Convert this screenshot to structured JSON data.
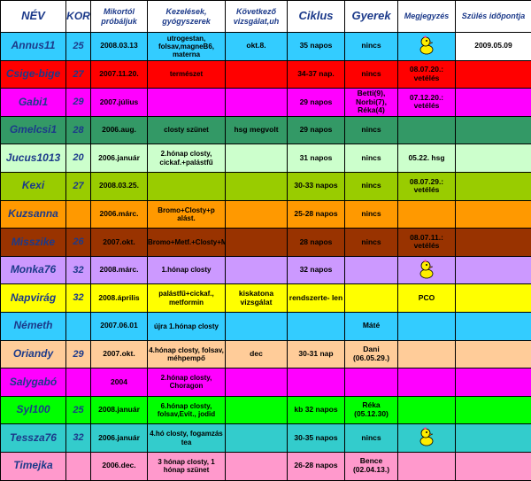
{
  "headers": [
    "NÉV",
    "KOR",
    "Mikortól próbáljuk",
    "Kezelések, gyógyszerek",
    "Következő vizsgálat,uh",
    "Ciklus",
    "Gyerek",
    "Megjegyzés",
    "Szülés időpontja"
  ],
  "rows": [
    {
      "bg": "#33ccff",
      "name": "Annus11",
      "kor": "25",
      "mikortol": "2008.03.13",
      "kezeles": "utrogestan, folsav,magneB6, materna",
      "kovetkezo": "okt.8.",
      "ciklus": "35 napos",
      "gyerek": "nincs",
      "megj": "",
      "duck": true,
      "szules": "2009.05.09",
      "szules_bg": "#ffffff"
    },
    {
      "bg": "#ff0000",
      "name": "Csige-bige",
      "kor": "27",
      "mikortol": "2007.11.20.",
      "kezeles": "természet",
      "kovetkezo": "",
      "ciklus": "34-37 nap.",
      "gyerek": "nincs",
      "megj": "08.07.20.: vetélés",
      "duck": false,
      "szules": "",
      "szules_bg": ""
    },
    {
      "bg": "#ff00ff",
      "name": "Gabi1",
      "kor": "29",
      "mikortol": "2007.július",
      "kezeles": "",
      "kovetkezo": "",
      "ciklus": "29 napos",
      "gyerek": "Betti(9), Norbi(7), Réka(4)",
      "megj": "07.12.20.: vetélés",
      "duck": false,
      "szules": "",
      "szules_bg": ""
    },
    {
      "bg": "#339966",
      "name": "Gmelcsi1",
      "kor": "28",
      "mikortol": "2006.aug.",
      "kezeles": "closty szünet",
      "kovetkezo": "hsg megvolt",
      "ciklus": "29 napos",
      "gyerek": "nincs",
      "megj": "",
      "duck": false,
      "szules": "",
      "szules_bg": ""
    },
    {
      "bg": "#ccffcc",
      "name": "Jucus1013",
      "kor": "20",
      "mikortol": "2006.január",
      "kezeles": "2.hónap closty, cickaf.+palástfű",
      "kovetkezo": "",
      "ciklus": "31 napos",
      "gyerek": "nincs",
      "megj": "05.22. hsg",
      "duck": false,
      "szules": "",
      "szules_bg": ""
    },
    {
      "bg": "#99cc00",
      "name": "Kexi",
      "kor": "27",
      "mikortol": "2008.03.25.",
      "kezeles": "",
      "kovetkezo": "",
      "ciklus": "30-33 napos",
      "gyerek": "nincs",
      "megj": "08.07.29.: vetélés",
      "duck": false,
      "szules": "",
      "szules_bg": ""
    },
    {
      "bg": "#ff9900",
      "name": "Kuzsanna",
      "kor": "",
      "mikortol": "2006.márc.",
      "kezeles": "Bromo+Closty+p alást.",
      "kovetkezo": "",
      "ciklus": "25-28 napos",
      "gyerek": "nincs",
      "megj": "",
      "duck": false,
      "szules": "",
      "szules_bg": ""
    },
    {
      "bg": "#993300",
      "name": "Misszike",
      "kor": "26",
      "mikortol": "2007.okt.",
      "kezeles": "Bromo+Metf.+Closty+Mio+Chorag.",
      "kovetkezo": "",
      "ciklus": "28 napos",
      "gyerek": "nincs",
      "megj": "08.07.11.: vetélés",
      "duck": false,
      "szules": "",
      "szules_bg": ""
    },
    {
      "bg": "#cc99ff",
      "name": "Monka76",
      "kor": "32",
      "mikortol": "2008.márc.",
      "kezeles": "1.hónap closty",
      "kovetkezo": "",
      "ciklus": "32 napos",
      "gyerek": "",
      "megj": "",
      "duck": true,
      "szules": "",
      "szules_bg": ""
    },
    {
      "bg": "#ffff00",
      "name": "Napvirág",
      "kor": "32",
      "mikortol": "2008.április",
      "kezeles": "palástfű+cickaf., metformin",
      "kovetkezo": "kiskatona vizsgálat",
      "ciklus": "rendszerte- len",
      "gyerek": "",
      "megj": "PCO",
      "duck": false,
      "szules": "",
      "szules_bg": ""
    },
    {
      "bg": "#33ccff",
      "name": "Németh",
      "kor": "",
      "mikortol": "2007.06.01",
      "kezeles": "újra 1.hónap closty",
      "kovetkezo": "",
      "ciklus": "",
      "gyerek": "Máté",
      "megj": "",
      "duck": false,
      "szules": "",
      "szules_bg": ""
    },
    {
      "bg": "#ffcc99",
      "name": "Oriandy",
      "kor": "29",
      "mikortol": "2007.okt.",
      "kezeles": "4.hónap closty, folsav, méhpempő",
      "kovetkezo": "dec",
      "ciklus": "30-31 nap",
      "gyerek": "Dani (06.05.29.)",
      "megj": "",
      "duck": false,
      "szules": "",
      "szules_bg": ""
    },
    {
      "bg": "#ff00ff",
      "name": "Salygabó",
      "kor": "",
      "mikortol": "2004",
      "kezeles": "2.hónap closty, Choragon",
      "kovetkezo": "",
      "ciklus": "",
      "gyerek": "",
      "megj": "",
      "duck": false,
      "szules": "",
      "szules_bg": ""
    },
    {
      "bg": "#00ff00",
      "name": "Syl100",
      "kor": "25",
      "mikortol": "2008.január",
      "kezeles": "6.hónap closty, folsav,Evit., jodid",
      "kovetkezo": "",
      "ciklus": "kb 32 napos",
      "gyerek": "Réka (05.12.30)",
      "megj": "",
      "duck": false,
      "szules": "",
      "szules_bg": ""
    },
    {
      "bg": "#33cccc",
      "name": "Tessza76",
      "kor": "32",
      "mikortol": "2006.január",
      "kezeles": "4.hó closty, fogamzás tea",
      "kovetkezo": "",
      "ciklus": "30-35 napos",
      "gyerek": "nincs",
      "megj": "",
      "duck": true,
      "szules": "",
      "szules_bg": ""
    },
    {
      "bg": "#ff99cc",
      "name": "Timejka",
      "kor": "",
      "mikortol": "2006.dec.",
      "kezeles": "3 hónap closty, 1 hónap szünet",
      "kovetkezo": "",
      "ciklus": "26-28 napos",
      "gyerek": "Bence (02.04.13.)",
      "megj": "",
      "duck": false,
      "szules": "",
      "szules_bg": ""
    }
  ]
}
